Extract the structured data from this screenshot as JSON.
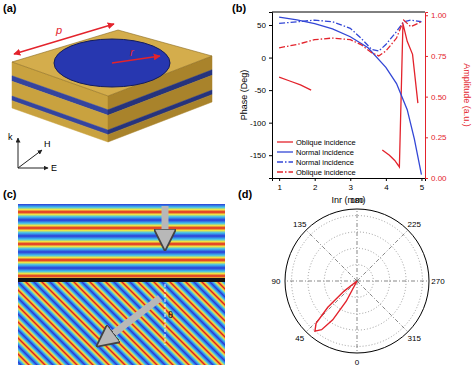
{
  "panel_labels": [
    "(a)",
    "(b)",
    "(c)",
    "(d)"
  ],
  "diagram": {
    "labels": [
      "p",
      "r"
    ],
    "axes": [
      "k",
      "H",
      "E"
    ]
  },
  "simulation": {
    "label": "θ"
  },
  "chart_data": [
    {
      "type": "line",
      "x_label": "Inr (mm)",
      "y_label": "Phase (Deg)",
      "y2_label": "Amplitude (a.u.)",
      "xlim": [
        0.8,
        5.1
      ],
      "xticks": [
        1,
        2,
        3,
        4,
        5
      ],
      "ylim": [
        -185,
        70
      ],
      "yticks": [
        -150,
        -100,
        -50,
        0,
        50
      ],
      "y2lim": [
        0,
        1.02
      ],
      "y2ticks": [
        {
          "value": 0,
          "label": "0.00"
        },
        {
          "value": 0.25,
          "label": "0.25"
        },
        {
          "value": 0.5,
          "label": "0.50"
        },
        {
          "value": 0.75,
          "label": "0.75"
        },
        {
          "value": 1,
          "label": "1.00"
        }
      ],
      "legend": "lower left",
      "series": [
        {
          "name": "Oblique incidence",
          "color": "#e3232c",
          "line_style": "solid",
          "x": [
            1.0,
            1.3,
            1.6,
            1.9,
            2.5,
            3.9,
            4.1,
            4.25,
            4.38,
            4.48,
            4.6,
            4.75,
            4.9
          ],
          "values": [
            -30,
            -36,
            -42,
            -50,
            null,
            -142,
            -150,
            -158,
            -168,
            52,
            25,
            5,
            -70
          ]
        },
        {
          "name": "Normal incidence",
          "color": "#3347d6",
          "line_style": "solid",
          "x": [
            1.0,
            1.5,
            2.0,
            2.5,
            3.0,
            3.5,
            4.0,
            4.3,
            4.6,
            4.8,
            5.0
          ],
          "values": [
            62,
            58,
            52,
            44,
            32,
            15,
            -15,
            -40,
            -80,
            -125,
            -180
          ]
        },
        {
          "name": "Normal incidence",
          "color": "#3347d6",
          "line_style": "dashdot",
          "axis": "y2",
          "x": [
            1.0,
            1.5,
            2.0,
            2.5,
            3.0,
            3.3,
            3.6,
            3.8,
            4.0,
            4.3,
            4.5,
            4.7,
            5.0
          ],
          "values": [
            0.95,
            0.96,
            0.97,
            0.96,
            0.92,
            0.86,
            0.79,
            0.78,
            0.82,
            0.9,
            0.96,
            0.97,
            0.96
          ]
        },
        {
          "name": "Oblique incidence",
          "color": "#e3232c",
          "line_style": "dashdot",
          "axis": "y2",
          "x": [
            1.0,
            1.5,
            2.0,
            2.5,
            3.0,
            3.3,
            3.6,
            3.8,
            4.0,
            4.3,
            4.5,
            4.7,
            5.0
          ],
          "values": [
            0.8,
            0.82,
            0.85,
            0.86,
            0.85,
            0.82,
            0.77,
            0.75,
            0.78,
            0.86,
            0.97,
            0.93,
            0.96
          ]
        }
      ]
    },
    {
      "type": "polar",
      "xlim": [
        0,
        360
      ],
      "xticks": [
        0,
        45,
        90,
        135,
        180,
        225,
        270,
        315
      ],
      "ylim": [
        0,
        1.1
      ],
      "yticks": [
        0.25,
        0.5,
        0.75,
        1.0
      ],
      "grid": true,
      "tick_labels": "x",
      "series": [
        {
          "color": "#e3232c",
          "line_style": "solid",
          "x": [
            22,
            28,
            32,
            36,
            40,
            44,
            48,
            52,
            56
          ],
          "values": [
            0,
            0.35,
            0.7,
            0.92,
            1.0,
            0.9,
            0.6,
            0.25,
            0
          ]
        }
      ]
    }
  ]
}
